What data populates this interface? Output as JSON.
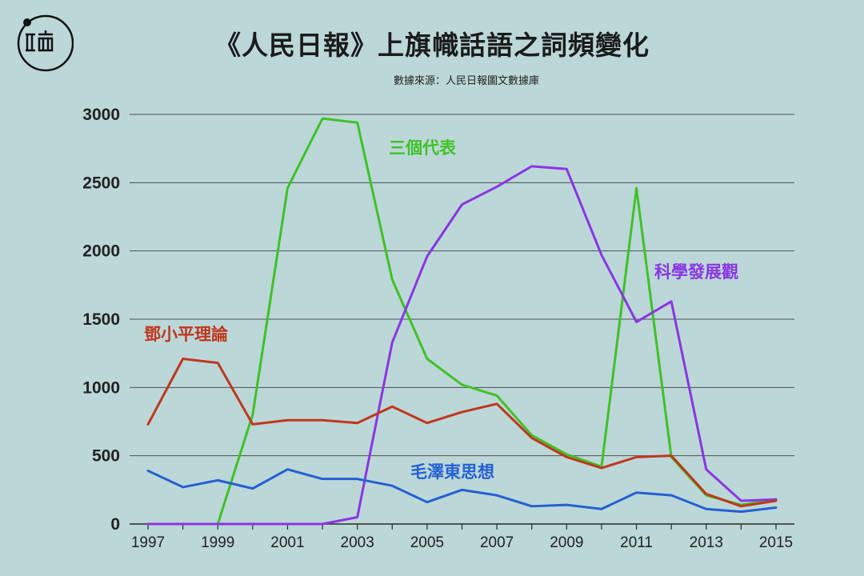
{
  "title": "《人民日報》上旗幟話語之詞頻變化",
  "source": "數據來源：人民日報圖文數據庫",
  "logo": {
    "icon": "initium-logo"
  },
  "chart_data": {
    "type": "line",
    "x": [
      1997,
      1998,
      1999,
      2000,
      2001,
      2002,
      2003,
      2004,
      2005,
      2006,
      2007,
      2008,
      2009,
      2010,
      2011,
      2012,
      2013,
      2014,
      2015
    ],
    "xticks": [
      "1997",
      "1999",
      "2001",
      "2003",
      "2005",
      "2007",
      "2009",
      "2011",
      "2013",
      "2015"
    ],
    "yticks": [
      "0",
      "500",
      "1000",
      "1500",
      "2000",
      "2500",
      "3000"
    ],
    "ylim": [
      0,
      3000
    ],
    "grid": true,
    "series": [
      {
        "name": "三個代表",
        "color": "#3fc227",
        "values": [
          0,
          0,
          0,
          800,
          2460,
          2970,
          2940,
          1790,
          1210,
          1020,
          940,
          650,
          510,
          420,
          2460,
          490,
          210,
          140,
          180
        ]
      },
      {
        "name": "科學發展觀",
        "color": "#8a36e2",
        "values": [
          0,
          0,
          0,
          0,
          0,
          0,
          50,
          1330,
          1960,
          2340,
          2470,
          2620,
          2600,
          1970,
          1480,
          1630,
          400,
          170,
          180
        ]
      },
      {
        "name": "鄧小平理論",
        "color": "#c0371d",
        "values": [
          730,
          1210,
          1180,
          730,
          760,
          760,
          740,
          860,
          740,
          820,
          880,
          630,
          490,
          410,
          490,
          500,
          220,
          130,
          170
        ]
      },
      {
        "name": "毛澤東思想",
        "color": "#2460d2",
        "values": [
          390,
          270,
          320,
          260,
          400,
          330,
          330,
          280,
          160,
          250,
          210,
          130,
          140,
          110,
          230,
          210,
          110,
          90,
          120
        ]
      }
    ]
  }
}
